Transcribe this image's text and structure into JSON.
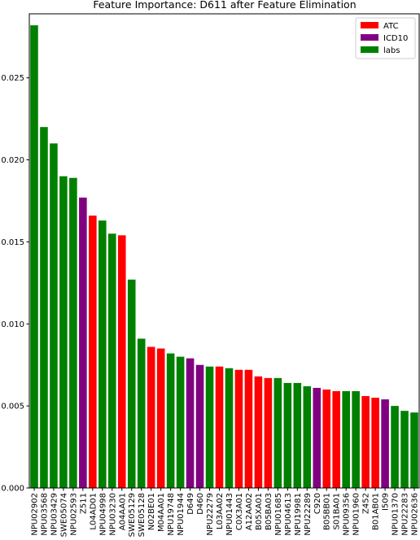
{
  "colors": {
    "ATC": "#ff0000",
    "ICD10": "#800080",
    "labs": "#008000"
  },
  "chart_data": {
    "type": "bar",
    "title": "Feature Importance: D611 after Feature Elimination",
    "xlabel": "",
    "ylabel": "",
    "ylim": [
      0,
      0.0289
    ],
    "yticks": [
      "0.000",
      "0.005",
      "0.010",
      "0.015",
      "0.020",
      "0.025"
    ],
    "ytick_values": [
      0,
      0.005,
      0.01,
      0.015,
      0.02,
      0.025
    ],
    "grid": false,
    "legend": {
      "position": "top-right",
      "entries": [
        {
          "name": "ATC",
          "color": "#ff0000"
        },
        {
          "name": "ICD10",
          "color": "#800080"
        },
        {
          "name": "labs",
          "color": "#008000"
        }
      ]
    },
    "categories": [
      "NPU02902",
      "NPU03568",
      "NPU03429",
      "SWE05074",
      "NPU02593",
      "Z511",
      "L04AD01",
      "NPU04998",
      "NPU03230",
      "A04AA01",
      "SWE05129",
      "SWE05128",
      "N02BE01",
      "M04AA01",
      "NPU19748",
      "NPU01944",
      "D649",
      "D460",
      "NPU22279",
      "L03AA02",
      "NPU01443",
      "C0X3A01",
      "A12AA02",
      "B05XA01",
      "B05BA03",
      "NPU01685",
      "NPU04613",
      "NPU19981",
      "NPU22289",
      "C920",
      "B05BB01",
      "S01BA01",
      "NPU09356",
      "NPU01960",
      "Z452",
      "B01AB01",
      "I509",
      "NPU01370",
      "NPU22283",
      "NPU02636"
    ],
    "groups": [
      "labs",
      "labs",
      "labs",
      "labs",
      "labs",
      "ICD10",
      "ATC",
      "labs",
      "labs",
      "ATC",
      "labs",
      "labs",
      "ATC",
      "ATC",
      "labs",
      "labs",
      "ICD10",
      "ICD10",
      "labs",
      "ATC",
      "labs",
      "ATC",
      "ATC",
      "ATC",
      "ATC",
      "labs",
      "labs",
      "labs",
      "labs",
      "ICD10",
      "ATC",
      "ATC",
      "labs",
      "labs",
      "ATC",
      "ATC",
      "ICD10",
      "labs",
      "labs",
      "labs"
    ],
    "values": [
      0.0282,
      0.022,
      0.021,
      0.019,
      0.0189,
      0.0177,
      0.0166,
      0.0163,
      0.0155,
      0.0154,
      0.0127,
      0.0091,
      0.0086,
      0.0085,
      0.0082,
      0.008,
      0.0079,
      0.0075,
      0.0074,
      0.0074,
      0.0073,
      0.0072,
      0.0072,
      0.0068,
      0.0067,
      0.0067,
      0.0064,
      0.0064,
      0.0062,
      0.0061,
      0.006,
      0.0059,
      0.0059,
      0.0059,
      0.0056,
      0.0055,
      0.0054,
      0.005,
      0.0047,
      0.0046
    ]
  }
}
